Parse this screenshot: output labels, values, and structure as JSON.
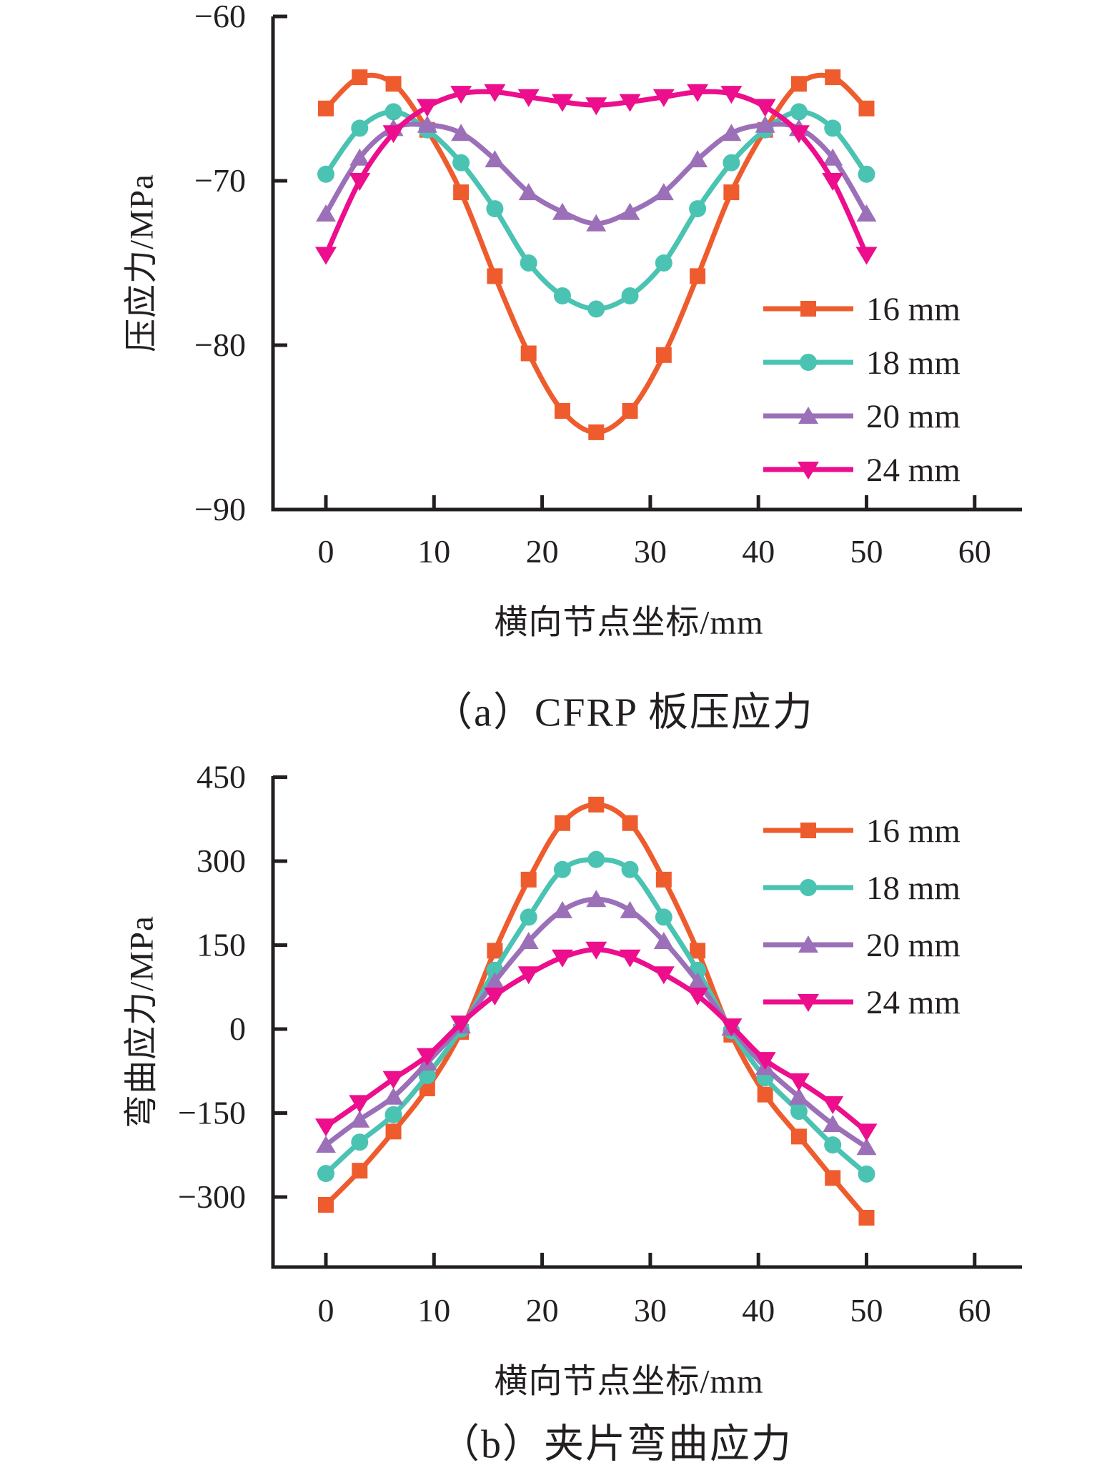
{
  "page": {
    "background": "#ffffff",
    "text_color": "#231f20"
  },
  "legend_labels": [
    "16 mm",
    "18 mm",
    "20 mm",
    "24 mm"
  ],
  "chart_data": [
    {
      "type": "line",
      "title": "（a）CFRP 板压应力",
      "xlabel": "横向节点坐标/mm",
      "ylabel": "压应力/MPa",
      "xlim": [
        -5,
        64
      ],
      "ylim": [
        -90,
        -60
      ],
      "xticks": [
        0,
        10,
        20,
        30,
        40,
        50,
        60
      ],
      "yticks": [
        -60,
        -70,
        -80,
        -90
      ],
      "grid": false,
      "legend_position": "right-center",
      "x": [
        0,
        3.125,
        6.25,
        9.375,
        12.5,
        15.625,
        18.75,
        21.875,
        25,
        28.125,
        31.25,
        34.375,
        37.5,
        40.625,
        43.75,
        46.875,
        50
      ],
      "series": [
        {
          "name": "16 mm",
          "color": "#ee5c2e",
          "marker": "square",
          "values": [
            -65.6,
            -63.7,
            -64.1,
            -66.9,
            -70.7,
            -75.8,
            -80.5,
            -84.0,
            -85.3,
            -84.0,
            -80.6,
            -75.8,
            -70.7,
            -66.9,
            -64.1,
            -63.7,
            -65.6
          ]
        },
        {
          "name": "18 mm",
          "color": "#4ac3b3",
          "marker": "circle",
          "values": [
            -69.6,
            -66.8,
            -65.8,
            -66.9,
            -68.9,
            -71.7,
            -75.0,
            -77.0,
            -77.8,
            -77.0,
            -75.0,
            -71.7,
            -68.9,
            -66.9,
            -65.8,
            -66.8,
            -69.6
          ]
        },
        {
          "name": "20 mm",
          "color": "#9b70b9",
          "marker": "triangle-up",
          "values": [
            -72.0,
            -68.6,
            -66.8,
            -66.6,
            -67.1,
            -68.7,
            -70.7,
            -71.9,
            -72.6,
            -71.9,
            -70.7,
            -68.7,
            -67.1,
            -66.6,
            -66.8,
            -68.6,
            -72.0
          ]
        },
        {
          "name": "24 mm",
          "color": "#ec0e8c",
          "marker": "triangle-down",
          "values": [
            -74.5,
            -70.0,
            -67.1,
            -65.5,
            -64.7,
            -64.6,
            -64.9,
            -65.2,
            -65.4,
            -65.2,
            -64.9,
            -64.6,
            -64.7,
            -65.5,
            -67.1,
            -70.0,
            -74.5
          ]
        }
      ]
    },
    {
      "type": "line",
      "title": "（b）夹片弯曲应力",
      "xlabel": "横向节点坐标/mm",
      "ylabel": "弯曲应力/MPa",
      "xlim": [
        -5,
        64
      ],
      "ylim": [
        -425,
        450
      ],
      "xticks": [
        0,
        10,
        20,
        30,
        40,
        50,
        60
      ],
      "yticks": [
        450,
        300,
        150,
        0,
        -150,
        -300
      ],
      "grid": false,
      "legend_position": "right-upper",
      "x": [
        0,
        3.125,
        6.25,
        9.375,
        12.5,
        15.625,
        18.75,
        21.875,
        25,
        28.125,
        31.25,
        34.375,
        37.5,
        40.625,
        43.75,
        46.875,
        50
      ],
      "series": [
        {
          "name": "16 mm",
          "color": "#ee5c2e",
          "marker": "square",
          "values": [
            -314,
            -253,
            -183,
            -106,
            -5,
            140,
            267,
            368,
            401,
            368,
            267,
            140,
            -10,
            -117,
            -192,
            -266,
            -337
          ]
        },
        {
          "name": "18 mm",
          "color": "#4ac3b3",
          "marker": "circle",
          "values": [
            -258,
            -202,
            -153,
            -83,
            0,
            105,
            200,
            285,
            303,
            285,
            200,
            105,
            -3,
            -87,
            -147,
            -207,
            -259
          ]
        },
        {
          "name": "20 mm",
          "color": "#9b70b9",
          "marker": "triangle-up",
          "values": [
            -207,
            -162,
            -121,
            -60,
            6,
            85,
            157,
            212,
            232,
            212,
            157,
            85,
            2,
            -68,
            -121,
            -170,
            -211
          ]
        },
        {
          "name": "24 mm",
          "color": "#ec0e8c",
          "marker": "triangle-down",
          "values": [
            -174,
            -132,
            -89,
            -48,
            10,
            60,
            98,
            128,
            142,
            128,
            98,
            60,
            5,
            -55,
            -93,
            -134,
            -183
          ]
        }
      ]
    }
  ]
}
